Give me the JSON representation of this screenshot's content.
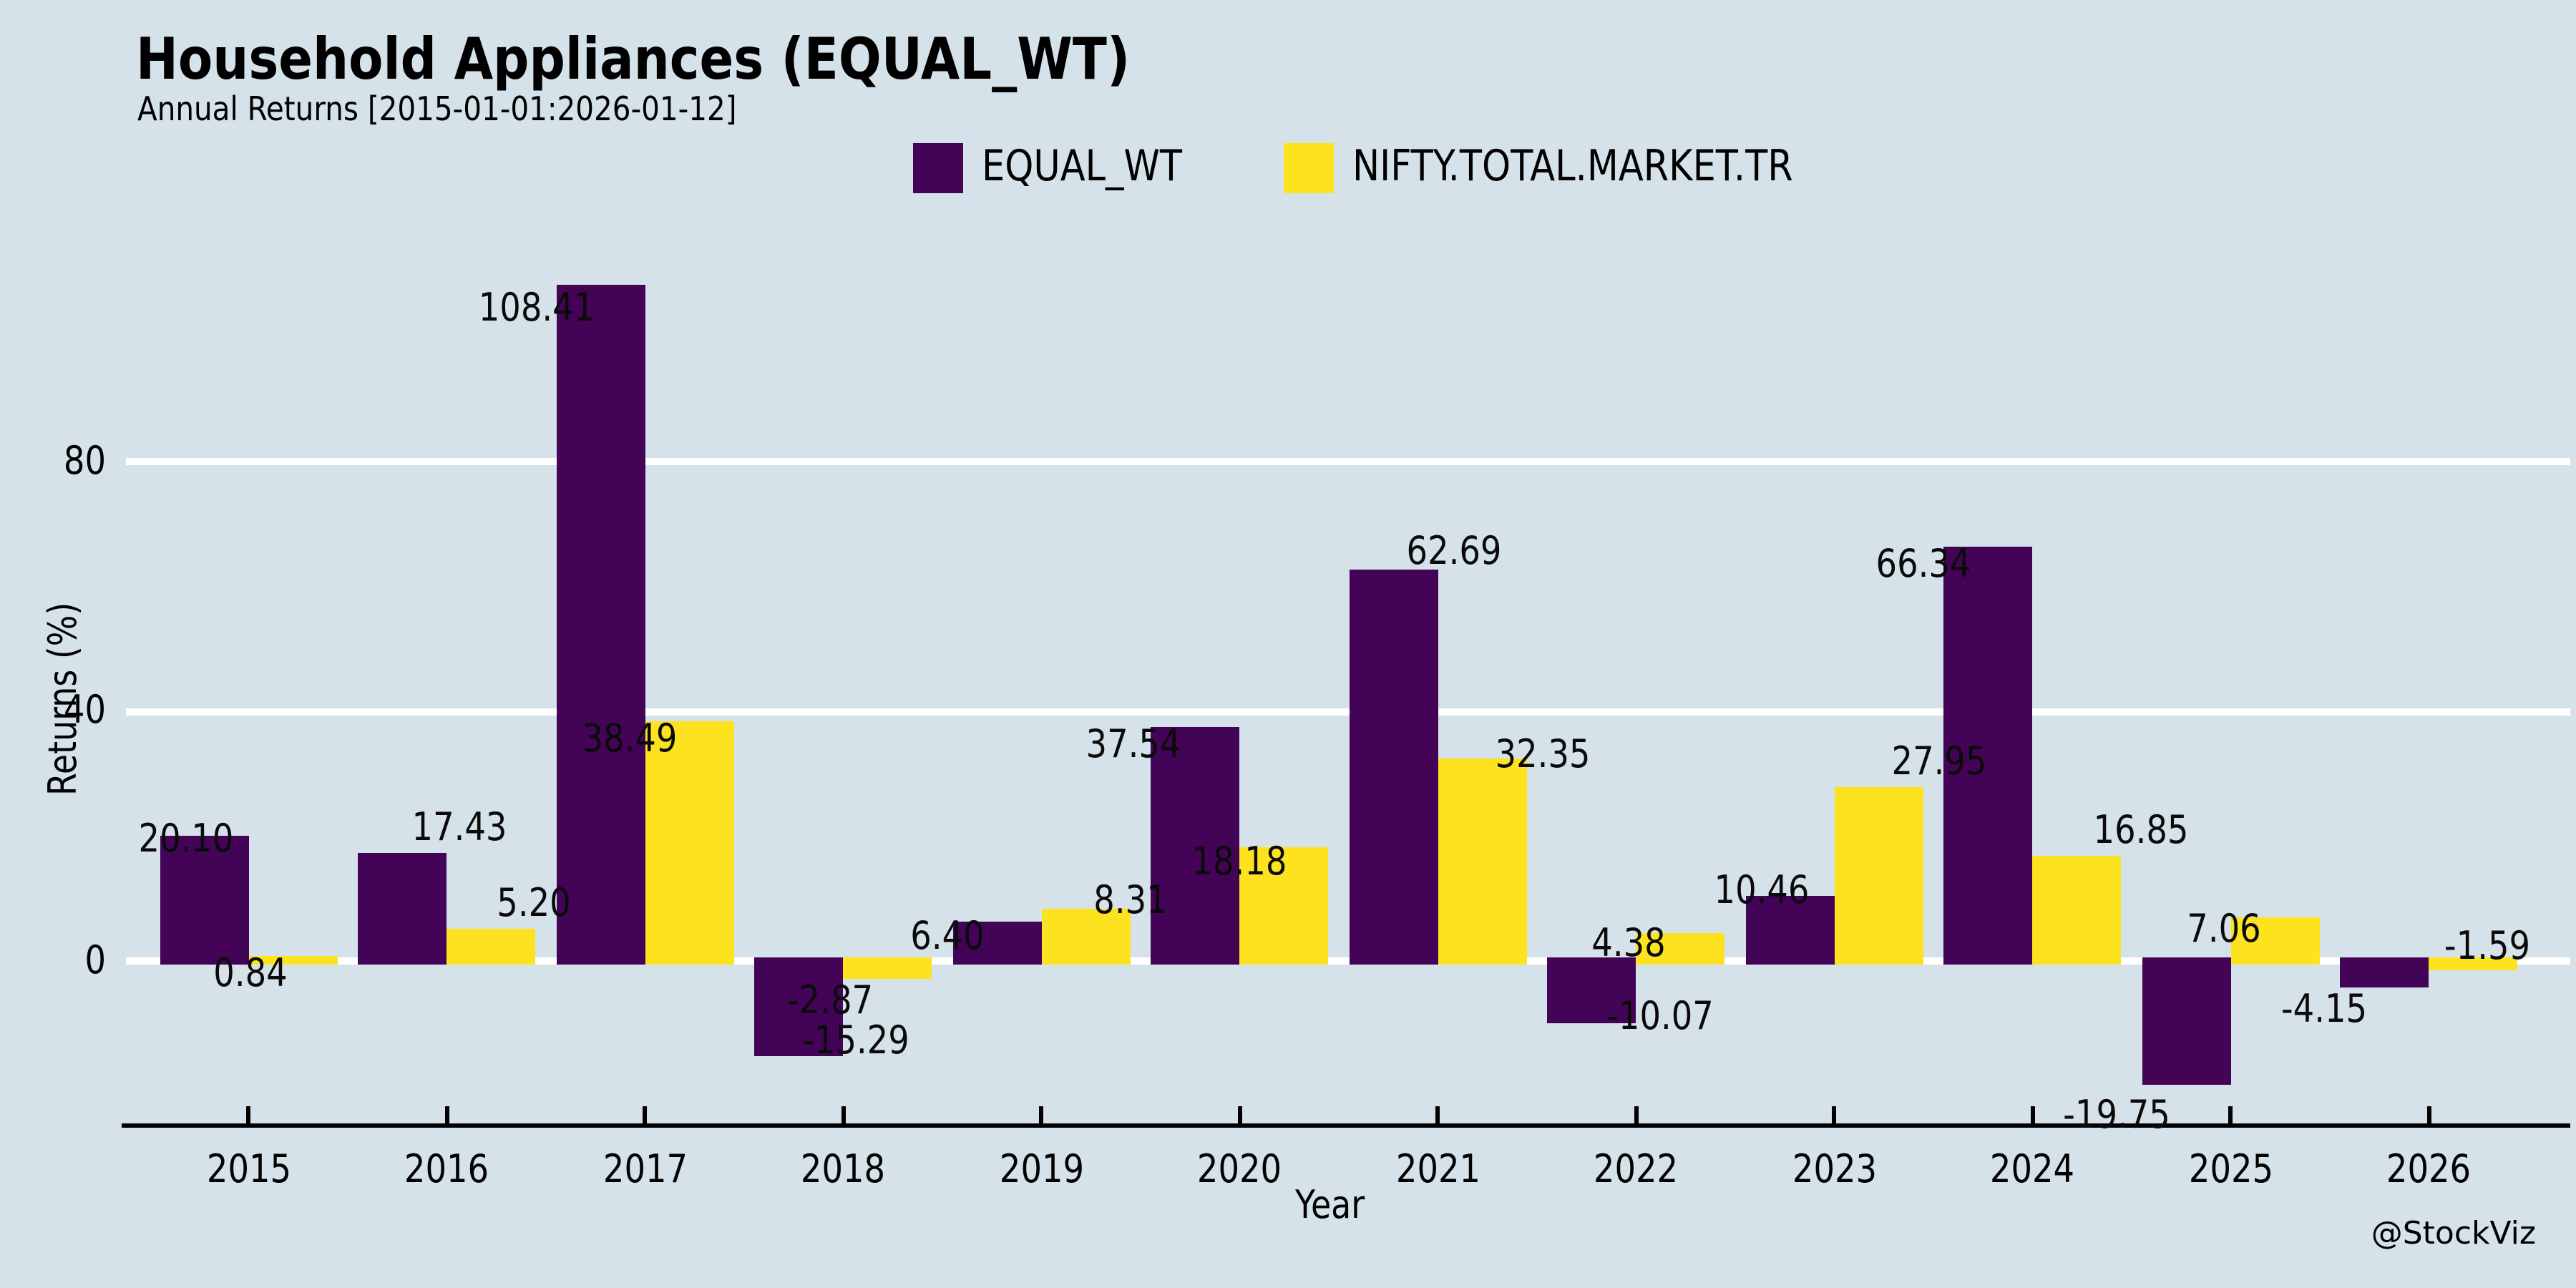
{
  "chart_data": {
    "type": "bar",
    "title": "Household Appliances (EQUAL_WT)",
    "subtitle": "Annual Returns [2015-01-01:2026-01-12]",
    "xlabel": "Year",
    "ylabel": "Returns (%)",
    "categories": [
      "2015",
      "2016",
      "2017",
      "2018",
      "2019",
      "2020",
      "2021",
      "2022",
      "2023",
      "2024",
      "2025",
      "2026"
    ],
    "series": [
      {
        "name": "EQUAL_WT",
        "color": "#430457",
        "values": [
          20.1,
          17.43,
          108.41,
          -15.29,
          6.4,
          37.54,
          62.69,
          -10.07,
          10.46,
          66.34,
          -19.75,
          -4.15
        ]
      },
      {
        "name": "NIFTY.TOTAL.MARKET.TR",
        "color": "#fde31f",
        "values": [
          0.84,
          5.2,
          38.49,
          -2.87,
          8.31,
          18.18,
          32.35,
          4.38,
          27.95,
          16.85,
          7.06,
          -1.59
        ]
      }
    ],
    "value_label_decimals": 2,
    "yticks": [
      0,
      40,
      80
    ],
    "ytick_labels": [
      "0",
      "40",
      "80"
    ],
    "ylim": [
      -26.3,
      115
    ],
    "grid": "horizontal",
    "gridline_color": "#ffffff",
    "background_color": "#d6e2e9",
    "axis_color": "#000000",
    "text_color": "#000000",
    "legend_position": "top-center",
    "watermark": "@StockViz"
  }
}
